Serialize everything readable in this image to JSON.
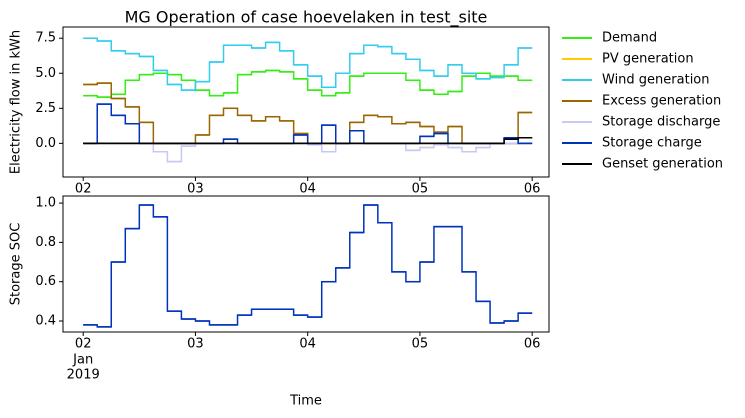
{
  "chart_data": [
    {
      "type": "line",
      "step": true,
      "title": "MG Operation of case hoevelaken in test_site",
      "ylabel": "Electricity flow in kWh",
      "legend": "outside right",
      "x": [
        2.0,
        2.125,
        2.25,
        2.375,
        2.5,
        2.625,
        2.75,
        2.875,
        3.0,
        3.125,
        3.25,
        3.375,
        3.5,
        3.625,
        3.75,
        3.875,
        4.0,
        4.125,
        4.25,
        4.375,
        4.5,
        4.625,
        4.75,
        4.875,
        5.0,
        5.125,
        5.25,
        5.375,
        5.5,
        5.625,
        5.75,
        5.875
      ],
      "xlim": [
        1.82,
        6.15
      ],
      "xticks": [
        {
          "value": 2,
          "label": "02"
        },
        {
          "value": 3,
          "label": "03"
        },
        {
          "value": 4,
          "label": "04"
        },
        {
          "value": 5,
          "label": "05"
        },
        {
          "value": 6,
          "label": "06"
        }
      ],
      "ylim": [
        -2.4,
        8.3
      ],
      "yticks": [
        {
          "value": 0,
          "label": "0.0"
        },
        2.5,
        {
          "value": 5,
          "label": "5.0"
        },
        7.5
      ],
      "series": [
        {
          "name": "Demand",
          "color": "#33ee11",
          "values": [
            3.4,
            3.3,
            3.5,
            4.5,
            4.9,
            5.0,
            4.9,
            4.5,
            3.8,
            3.4,
            3.6,
            4.9,
            5.1,
            5.2,
            5.1,
            4.6,
            3.8,
            3.4,
            3.6,
            4.8,
            5.0,
            5.0,
            5.0,
            4.5,
            3.8,
            3.5,
            3.7,
            4.8,
            5.0,
            4.8,
            4.8,
            4.5
          ]
        },
        {
          "name": "PV generation",
          "color": "#ffcc00",
          "values": [
            0,
            0,
            0,
            0,
            0,
            0,
            0,
            0,
            0,
            0,
            0,
            0,
            0,
            0,
            0,
            0,
            0,
            0,
            0,
            0,
            0,
            0,
            0,
            0,
            0,
            0,
            0,
            0,
            0,
            0,
            0,
            0
          ]
        },
        {
          "name": "Wind generation",
          "color": "#33ccee",
          "values": [
            7.5,
            7.3,
            6.6,
            6.4,
            6.2,
            5.2,
            4.2,
            3.8,
            4.4,
            5.8,
            7.0,
            7.0,
            6.8,
            7.2,
            6.6,
            5.6,
            4.8,
            4.0,
            5.0,
            6.4,
            7.0,
            6.9,
            6.4,
            6.0,
            5.2,
            4.8,
            5.6,
            5.0,
            4.6,
            4.7,
            5.6,
            6.8
          ]
        },
        {
          "name": "Excess generation",
          "color": "#996600",
          "values": [
            4.2,
            4.3,
            3.2,
            2.6,
            1.5,
            0,
            0,
            0,
            0.6,
            2.0,
            2.5,
            2.0,
            1.6,
            1.9,
            1.6,
            0.7,
            0,
            0,
            0,
            1.5,
            2.0,
            1.9,
            1.4,
            1.5,
            1.2,
            0.8,
            1.2,
            0,
            0,
            0,
            0,
            2.2
          ]
        },
        {
          "name": "Storage discharge",
          "color": "#c8c8f4",
          "values": [
            0,
            0,
            0,
            0,
            0,
            -0.6,
            -1.3,
            -0.2,
            0,
            0,
            0,
            0,
            0,
            0,
            0,
            0,
            -0.1,
            -0.6,
            0,
            0,
            0,
            0,
            0,
            -0.5,
            -0.3,
            -0.1,
            -0.3,
            -0.6,
            -0.3,
            0,
            0,
            0
          ]
        },
        {
          "name": "Storage charge",
          "color": "#0033bb",
          "values": [
            0,
            2.8,
            2.0,
            1.4,
            0,
            0,
            0,
            0,
            0,
            0,
            0.3,
            0,
            0,
            0,
            0,
            0.6,
            0,
            1.3,
            0,
            0.9,
            0,
            0,
            0,
            0,
            0.5,
            0.7,
            0,
            0,
            0,
            0,
            0.4,
            0
          ]
        },
        {
          "name": "Genset generation",
          "color": "#000000",
          "values": [
            0,
            0,
            0,
            0,
            0,
            0,
            0,
            0,
            0,
            0,
            0,
            0,
            0,
            0,
            0,
            0,
            0,
            0,
            0,
            0,
            0,
            0,
            0,
            0,
            0,
            0,
            0,
            0,
            0,
            0,
            0.3,
            0.4
          ]
        }
      ]
    },
    {
      "type": "line",
      "step": true,
      "ylabel": "Storage SOC",
      "xlabel": "Time",
      "x": [
        2.0,
        2.125,
        2.25,
        2.375,
        2.5,
        2.625,
        2.75,
        2.875,
        3.0,
        3.125,
        3.25,
        3.375,
        3.5,
        3.625,
        3.75,
        3.875,
        4.0,
        4.125,
        4.25,
        4.375,
        4.5,
        4.625,
        4.75,
        4.875,
        5.0,
        5.125,
        5.25,
        5.375,
        5.5,
        5.625,
        5.75,
        5.875
      ],
      "xlim": [
        1.82,
        6.15
      ],
      "xticks": [
        {
          "value": 2,
          "label": "02"
        },
        {
          "value": 3,
          "label": "03"
        },
        {
          "value": 4,
          "label": "04"
        },
        {
          "value": 5,
          "label": "05"
        },
        {
          "value": 6,
          "label": "06"
        }
      ],
      "xtick_extra": [
        "Jan",
        "2019"
      ],
      "ylim": [
        0.344,
        1.036
      ],
      "yticks": [
        0.4,
        0.6,
        0.8,
        {
          "value": 1,
          "label": "1.0"
        }
      ],
      "color": "#0033bb",
      "values": [
        0.38,
        0.37,
        0.7,
        0.87,
        0.99,
        0.93,
        0.45,
        0.41,
        0.4,
        0.38,
        0.38,
        0.43,
        0.46,
        0.46,
        0.46,
        0.43,
        0.42,
        0.6,
        0.67,
        0.85,
        0.99,
        0.9,
        0.65,
        0.6,
        0.7,
        0.88,
        0.88,
        0.65,
        0.5,
        0.39,
        0.4,
        0.44
      ]
    }
  ]
}
